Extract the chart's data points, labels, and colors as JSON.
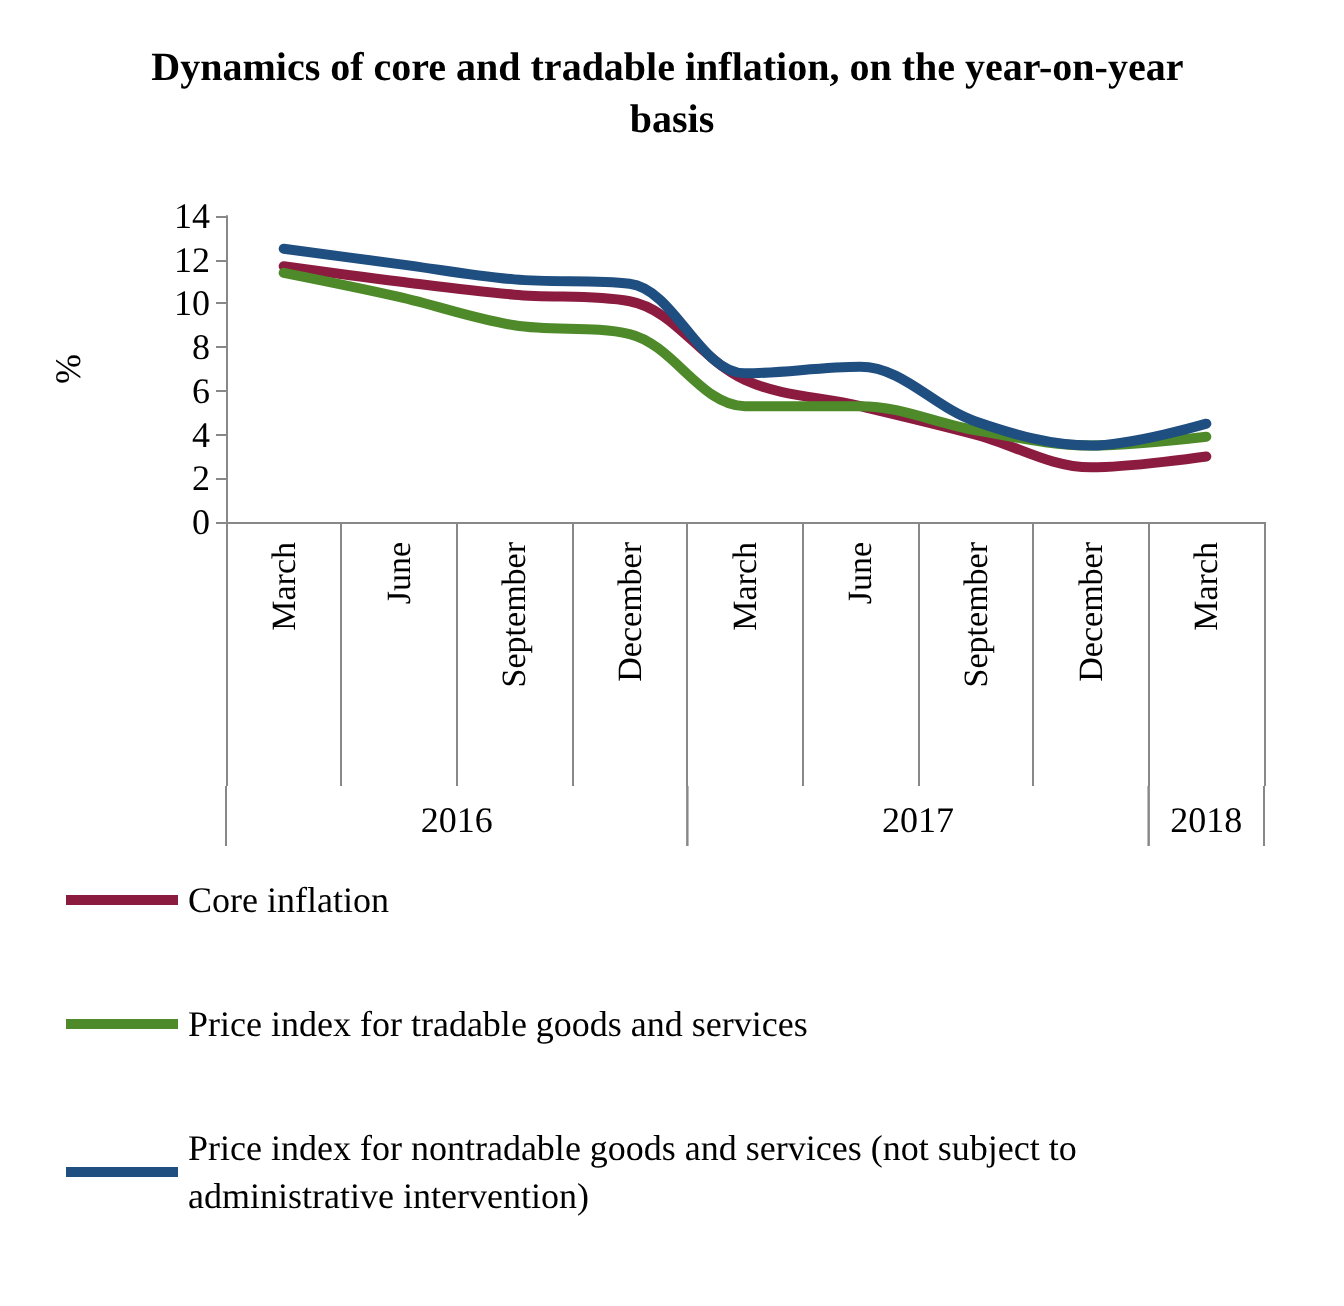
{
  "chart_data": {
    "type": "line",
    "title": "Dynamics of core and tradable inflation, on the year-on-year basis",
    "ylabel": "%",
    "categories": [
      "March",
      "June",
      "September",
      "December",
      "March",
      "June",
      "September",
      "December",
      "March"
    ],
    "annotations": [
      "2016",
      "2017",
      "2018"
    ],
    "series": [
      {
        "name": "Core inflation",
        "color": "#8b1c40",
        "values": [
          11.7,
          11.0,
          10.4,
          10.1,
          6.5,
          5.3,
          4.0,
          2.5,
          3.0
        ]
      },
      {
        "name": "Price index for tradable goods and services",
        "color": "#4e8a2a",
        "values": [
          11.4,
          10.3,
          9.0,
          8.6,
          5.3,
          5.3,
          4.2,
          3.5,
          3.9
        ]
      },
      {
        "name": "Price index for nontradable goods and services (not subject to administrative intervention)",
        "color": "#1f4e80",
        "values": [
          12.5,
          11.8,
          11.1,
          10.9,
          6.8,
          7.1,
          4.6,
          3.5,
          4.5
        ]
      }
    ],
    "ylim": [
      0,
      14
    ],
    "yticks": [
      0,
      2,
      4,
      6,
      8,
      10,
      12,
      14
    ],
    "grid": false,
    "legend": "bottom",
    "marker": "none",
    "line_style": "solid"
  }
}
